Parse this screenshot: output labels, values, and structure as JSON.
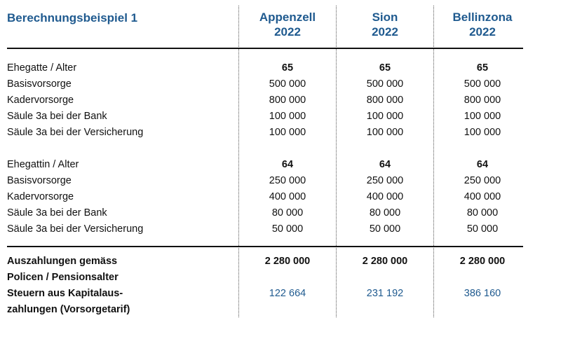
{
  "title": "Berechnungsbeispiel 1",
  "columns": [
    {
      "city": "Appenzell",
      "year": "2022"
    },
    {
      "city": "Sion",
      "year": "2022"
    },
    {
      "city": "Bellinzona",
      "year": "2022"
    }
  ],
  "rows": [
    {
      "label": "Ehegatte / Alter",
      "values": [
        "65",
        "65",
        "65"
      ],
      "bold_values": true
    },
    {
      "label": "Basisvorsorge",
      "values": [
        "500 000",
        "500 000",
        "500 000"
      ]
    },
    {
      "label": "Kadervorsorge",
      "values": [
        "800 000",
        "800 000",
        "800 000"
      ]
    },
    {
      "label": "Säule 3a bei der Bank",
      "values": [
        "100 000",
        "100 000",
        "100 000"
      ]
    },
    {
      "label": "Säule 3a bei der Versicherung",
      "values": [
        "100 000",
        "100 000",
        "100 000"
      ]
    },
    {
      "label": "Ehegattin / Alter",
      "values": [
        "64",
        "64",
        "64"
      ],
      "bold_values": true
    },
    {
      "label": "Basisvorsorge",
      "values": [
        "250 000",
        "250 000",
        "250 000"
      ]
    },
    {
      "label": "Kadervorsorge",
      "values": [
        "400 000",
        "400 000",
        "400 000"
      ]
    },
    {
      "label": "Säule 3a bei der Bank",
      "values": [
        "80 000",
        "80 000",
        "80 000"
      ]
    },
    {
      "label": "Säule 3a bei der Versicherung",
      "values": [
        "50 000",
        "50 000",
        "50 000"
      ]
    }
  ],
  "summary": {
    "payout_label_line1": "Auszahlungen gemäss",
    "payout_label_line2": "Policen / Pensionsalter",
    "payout_values": [
      "2 280 000",
      "2 280 000",
      "2 280 000"
    ],
    "tax_label_line1": "Steuern aus Kapitalaus-",
    "tax_label_line2": "zahlungen (Vorsorgetarif)",
    "tax_values": [
      "122 664",
      "231 192",
      "386 160"
    ]
  },
  "colors": {
    "accent": "#1f5a8f",
    "text": "#111111"
  }
}
